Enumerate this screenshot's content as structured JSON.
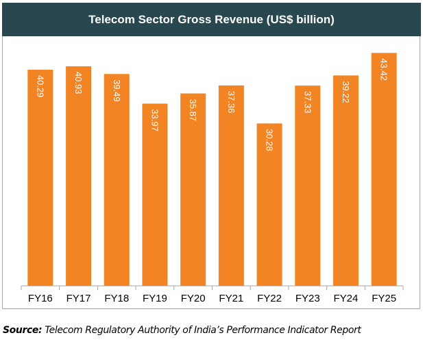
{
  "chart_data": {
    "type": "bar",
    "title": "Telecom Sector Gross Revenue (US$ billion)",
    "categories": [
      "FY16",
      "FY17",
      "FY18",
      "FY19",
      "FY20",
      "FY21",
      "FY22",
      "FY23",
      "FY24",
      "FY25"
    ],
    "values": [
      40.29,
      40.93,
      39.49,
      33.97,
      35.87,
      37.36,
      30.28,
      37.33,
      39.22,
      43.42
    ],
    "xlabel": "",
    "ylabel": "",
    "ylim": [
      0,
      45
    ],
    "grid": false,
    "data_labels": true,
    "bar_color": "#f28423",
    "header_color": "#29474f"
  },
  "source": {
    "label": "Source",
    "text": " Telecom Regulatory Authority of India’s Performance Indicator Report"
  }
}
